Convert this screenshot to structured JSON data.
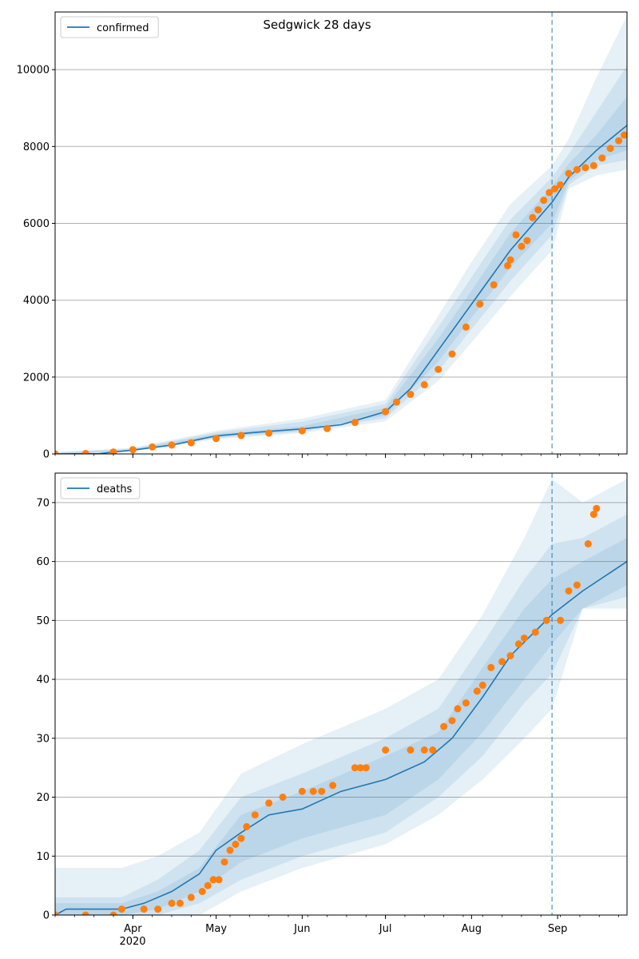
{
  "title": "Sedgwick 28 days",
  "x_ticks": [
    {
      "date": "2020-04-01",
      "label": "Apr"
    },
    {
      "date": "2020-05-01",
      "label": "May"
    },
    {
      "date": "2020-06-01",
      "label": "Jun"
    },
    {
      "date": "2020-07-01",
      "label": "Jul"
    },
    {
      "date": "2020-08-01",
      "label": "Aug"
    },
    {
      "date": "2020-09-01",
      "label": "Sep"
    }
  ],
  "x_year_label": "2020",
  "colors": {
    "model_line": "#1f77b4",
    "observed_points": "#ff7f0e",
    "band": "#1f77b4",
    "forecast_marker": "#1f77b4",
    "grid": "#b0b0b0"
  },
  "chart_data": [
    {
      "type": "line",
      "name": "confirmed-panel",
      "legend": "confirmed",
      "xlim": [
        "2020-03-04",
        "2020-09-26"
      ],
      "ylim": [
        0,
        11500
      ],
      "y_ticks": [
        0,
        2000,
        4000,
        6000,
        8000,
        10000
      ],
      "grid": "horizontal",
      "legend_position": "top-left",
      "forecast_start": "2020-08-30",
      "model": {
        "x": [
          "2020-03-04",
          "2020-03-20",
          "2020-04-01",
          "2020-04-15",
          "2020-05-01",
          "2020-05-15",
          "2020-06-01",
          "2020-06-15",
          "2020-07-01",
          "2020-07-10",
          "2020-07-20",
          "2020-08-01",
          "2020-08-15",
          "2020-08-30",
          "2020-09-05",
          "2020-09-15",
          "2020-09-26"
        ],
        "y": [
          0,
          10,
          100,
          230,
          470,
          560,
          650,
          760,
          1100,
          1700,
          2700,
          3900,
          5300,
          6550,
          7200,
          7900,
          8550
        ]
      },
      "bands": [
        {
          "x": [
            "2020-03-04",
            "2020-04-01",
            "2020-05-01",
            "2020-06-01",
            "2020-07-01",
            "2020-07-20",
            "2020-08-01",
            "2020-08-15",
            "2020-08-30",
            "2020-09-05",
            "2020-09-15",
            "2020-09-26"
          ],
          "lo": [
            0,
            60,
            380,
            540,
            850,
            1900,
            2900,
            4100,
            5300,
            6900,
            7250,
            7400
          ],
          "hi": [
            50,
            160,
            600,
            920,
            1400,
            3600,
            5000,
            6500,
            7500,
            8200,
            9800,
            11400
          ]
        },
        {
          "x": [
            "2020-03-04",
            "2020-04-01",
            "2020-05-01",
            "2020-06-01",
            "2020-07-01",
            "2020-07-20",
            "2020-08-01",
            "2020-08-15",
            "2020-08-30",
            "2020-09-05",
            "2020-09-15",
            "2020-09-26"
          ],
          "lo": [
            0,
            75,
            410,
            580,
            930,
            2150,
            3250,
            4500,
            5700,
            7000,
            7500,
            7650
          ],
          "hi": [
            35,
            140,
            560,
            840,
            1300,
            3300,
            4600,
            6100,
            7200,
            7800,
            8900,
            10100
          ]
        },
        {
          "x": [
            "2020-03-04",
            "2020-04-01",
            "2020-05-01",
            "2020-06-01",
            "2020-07-01",
            "2020-07-20",
            "2020-08-01",
            "2020-08-15",
            "2020-08-30",
            "2020-09-05",
            "2020-09-15",
            "2020-09-26"
          ],
          "lo": [
            0,
            85,
            440,
            610,
            1000,
            2400,
            3550,
            4850,
            6000,
            7100,
            7650,
            7900
          ],
          "hi": [
            20,
            120,
            520,
            720,
            1200,
            3000,
            4250,
            5750,
            6950,
            7550,
            8300,
            9300
          ]
        }
      ],
      "observed": {
        "x": [
          "2020-03-04",
          "2020-03-15",
          "2020-03-25",
          "2020-04-01",
          "2020-04-08",
          "2020-04-15",
          "2020-04-22",
          "2020-05-01",
          "2020-05-10",
          "2020-05-20",
          "2020-06-01",
          "2020-06-10",
          "2020-06-20",
          "2020-07-01",
          "2020-07-05",
          "2020-07-10",
          "2020-07-15",
          "2020-07-20",
          "2020-07-25",
          "2020-07-30",
          "2020-08-04",
          "2020-08-09",
          "2020-08-14",
          "2020-08-15",
          "2020-08-17",
          "2020-08-19",
          "2020-08-21",
          "2020-08-23",
          "2020-08-25",
          "2020-08-27",
          "2020-08-29",
          "2020-08-31",
          "2020-09-02",
          "2020-09-05",
          "2020-09-08",
          "2020-09-11",
          "2020-09-14",
          "2020-09-17",
          "2020-09-20",
          "2020-09-23",
          "2020-09-25"
        ],
        "y": [
          0,
          10,
          50,
          110,
          180,
          230,
          290,
          400,
          480,
          540,
          600,
          660,
          820,
          1100,
          1350,
          1550,
          1800,
          2200,
          2600,
          3300,
          3900,
          4400,
          4900,
          5050,
          5700,
          5400,
          5550,
          6150,
          6350,
          6600,
          6800,
          6900,
          7000,
          7300,
          7400,
          7450,
          7500,
          7700,
          7950,
          8150,
          8300
        ]
      }
    },
    {
      "type": "line",
      "name": "deaths-panel",
      "legend": "deaths",
      "xlim": [
        "2020-03-04",
        "2020-09-26"
      ],
      "ylim": [
        0,
        75
      ],
      "y_ticks": [
        0,
        10,
        20,
        30,
        40,
        50,
        60,
        70
      ],
      "grid": "horizontal",
      "legend_position": "top-left",
      "forecast_start": "2020-08-30",
      "model": {
        "x": [
          "2020-03-04",
          "2020-03-08",
          "2020-03-28",
          "2020-04-05",
          "2020-04-15",
          "2020-04-25",
          "2020-05-01",
          "2020-05-10",
          "2020-05-20",
          "2020-06-01",
          "2020-06-15",
          "2020-07-01",
          "2020-07-15",
          "2020-07-25",
          "2020-08-05",
          "2020-08-15",
          "2020-08-30",
          "2020-09-10",
          "2020-09-26"
        ],
        "y": [
          0,
          1,
          1,
          2,
          4,
          7,
          11,
          14,
          17,
          18,
          21,
          23,
          26,
          30,
          37,
          44,
          51,
          55,
          60
        ]
      },
      "bands": [
        {
          "x": [
            "2020-03-04",
            "2020-03-28",
            "2020-04-10",
            "2020-04-25",
            "2020-05-10",
            "2020-06-01",
            "2020-07-01",
            "2020-07-20",
            "2020-08-05",
            "2020-08-20",
            "2020-08-30",
            "2020-09-10",
            "2020-09-26"
          ],
          "lo": [
            0,
            0,
            0,
            0,
            4,
            8,
            12,
            17,
            23,
            30,
            35,
            52,
            52
          ],
          "hi": [
            8,
            8,
            10,
            14,
            24,
            29,
            35,
            40,
            51,
            64,
            74,
            70,
            74
          ]
        },
        {
          "x": [
            "2020-03-04",
            "2020-03-28",
            "2020-04-10",
            "2020-04-25",
            "2020-05-10",
            "2020-06-01",
            "2020-07-01",
            "2020-07-20",
            "2020-08-05",
            "2020-08-20",
            "2020-08-30",
            "2020-09-10",
            "2020-09-26"
          ],
          "lo": [
            0,
            0,
            0,
            2,
            6,
            10,
            14,
            20,
            27,
            36,
            41,
            52,
            54
          ],
          "hi": [
            3,
            3,
            6,
            11,
            20,
            24,
            30,
            35,
            46,
            57,
            63,
            64,
            68
          ]
        },
        {
          "x": [
            "2020-03-04",
            "2020-03-28",
            "2020-04-10",
            "2020-04-25",
            "2020-05-10",
            "2020-06-01",
            "2020-07-01",
            "2020-07-20",
            "2020-08-05",
            "2020-08-20",
            "2020-08-30",
            "2020-09-10",
            "2020-09-26"
          ],
          "lo": [
            0,
            0,
            1,
            4,
            9,
            13,
            17,
            23,
            31,
            40,
            46,
            52,
            56
          ],
          "hi": [
            2,
            2,
            4,
            8,
            17,
            21,
            27,
            31,
            42,
            52,
            57,
            60,
            64
          ]
        }
      ],
      "observed": {
        "x": [
          "2020-03-04",
          "2020-03-15",
          "2020-03-25",
          "2020-03-28",
          "2020-04-05",
          "2020-04-10",
          "2020-04-15",
          "2020-04-18",
          "2020-04-22",
          "2020-04-26",
          "2020-04-28",
          "2020-04-30",
          "2020-05-02",
          "2020-05-04",
          "2020-05-06",
          "2020-05-08",
          "2020-05-10",
          "2020-05-12",
          "2020-05-15",
          "2020-05-20",
          "2020-05-25",
          "2020-06-01",
          "2020-06-05",
          "2020-06-08",
          "2020-06-12",
          "2020-06-20",
          "2020-06-22",
          "2020-06-24",
          "2020-07-01",
          "2020-07-10",
          "2020-07-15",
          "2020-07-18",
          "2020-07-22",
          "2020-07-25",
          "2020-07-27",
          "2020-07-30",
          "2020-08-03",
          "2020-08-05",
          "2020-08-08",
          "2020-08-12",
          "2020-08-15",
          "2020-08-18",
          "2020-08-20",
          "2020-08-24",
          "2020-08-28",
          "2020-09-02",
          "2020-09-05",
          "2020-09-08",
          "2020-09-12",
          "2020-09-14",
          "2020-09-15"
        ],
        "y": [
          0,
          0,
          0,
          1,
          1,
          1,
          2,
          2,
          3,
          4,
          5,
          6,
          6,
          9,
          11,
          12,
          13,
          15,
          17,
          19,
          20,
          21,
          21,
          21,
          22,
          25,
          25,
          25,
          28,
          28,
          28,
          28,
          32,
          33,
          35,
          36,
          38,
          39,
          42,
          43,
          44,
          46,
          47,
          48,
          50,
          50,
          55,
          56,
          63,
          68,
          69
        ]
      }
    }
  ]
}
